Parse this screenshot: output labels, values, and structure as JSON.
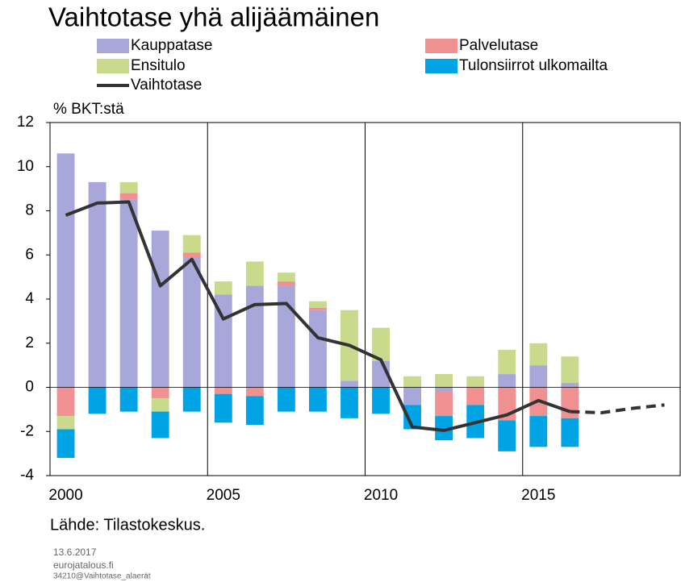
{
  "chart_data": {
    "type": "bar",
    "title": "Vaihtotase yhä alijäämäinen",
    "y_label": "% BKT:stä",
    "source": "Lähde: Tilastokeskus.",
    "footer": [
      "13.6.2017",
      "eurojatalous.fi",
      "34210@Vaihtotase_alaerät"
    ],
    "x": [
      2000,
      2001,
      2002,
      2003,
      2004,
      2005,
      2006,
      2007,
      2008,
      2009,
      2010,
      2011,
      2012,
      2013,
      2014,
      2015,
      2016,
      2017,
      2018,
      2019
    ],
    "series": [
      {
        "name": "Kauppatase",
        "color": "#a7a7d9",
        "values": [
          10.6,
          9.3,
          8.5,
          7.1,
          5.9,
          4.2,
          4.6,
          4.6,
          3.5,
          0.3,
          1.2,
          -0.8,
          -0.2,
          0,
          0.6,
          1.0,
          0.2,
          null,
          null,
          null
        ]
      },
      {
        "name": "Palvelutase",
        "color": "#f09090",
        "values": [
          -1.3,
          0,
          0.3,
          -0.5,
          0.2,
          -0.3,
          -0.4,
          0.2,
          0.1,
          0,
          0,
          0,
          -1.1,
          -0.8,
          -1.5,
          -1.3,
          -1.4,
          null,
          null,
          null
        ]
      },
      {
        "name": "Ensitulo",
        "color": "#c9da8c",
        "values": [
          -0.6,
          0,
          0.5,
          -0.6,
          0.8,
          0.6,
          1.1,
          0.4,
          0.3,
          3.2,
          1.5,
          0.5,
          0.6,
          0.5,
          1.1,
          1.0,
          1.2,
          null,
          null,
          null
        ]
      },
      {
        "name": "Tulonsiirrot ulkomailta",
        "color": "#00a3e3",
        "values": [
          -1.3,
          -1.2,
          -1.1,
          -1.2,
          -1.1,
          -1.3,
          -1.3,
          -1.1,
          -1.1,
          -1.4,
          -1.2,
          -1.1,
          -1.1,
          -1.5,
          -1.4,
          -1.4,
          -1.3,
          null,
          null,
          null
        ]
      },
      {
        "name": "Vaihtotase",
        "type": "line",
        "color": "#333333",
        "dashed_from": 2016,
        "values": [
          7.8,
          8.35,
          8.4,
          4.6,
          5.8,
          3.1,
          3.75,
          3.8,
          2.25,
          1.9,
          1.25,
          -1.8,
          -1.95,
          -1.6,
          -1.25,
          -0.6,
          -1.1,
          -1.15,
          -0.95,
          -0.8
        ]
      }
    ],
    "xlim": [
      1999.5,
      2019.5
    ],
    "xticks": [
      2000,
      2005,
      2010,
      2015
    ],
    "xgrid": [
      2004.5,
      2009.5,
      2014.5
    ],
    "ylim": [
      -4,
      12
    ],
    "yticks": [
      -4,
      -2,
      0,
      2,
      4,
      6,
      8,
      10,
      12
    ]
  }
}
